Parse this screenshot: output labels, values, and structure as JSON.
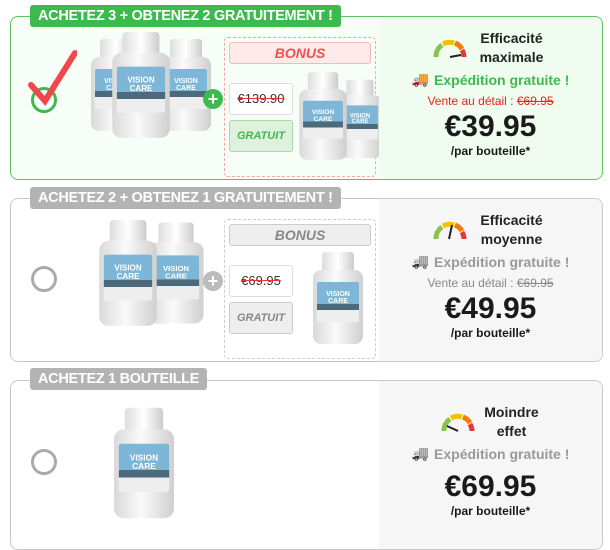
{
  "offers": [
    {
      "badge": "ACHETEZ 3 + OBTENEZ 2 GRATUITEMENT !",
      "selected": true,
      "bonus_label": "BONUS",
      "old_price": "€139.90",
      "free_label": "GRATUIT",
      "efficacy": "Efficacité maximale",
      "shipping": "Expédition gratuite !",
      "retail_label": "Vente au détail :",
      "retail_price": "€69.95",
      "price": "€39.95",
      "per": "/par bouteille*"
    },
    {
      "badge": "ACHETEZ 2 + OBTENEZ 1 GRATUITEMENT !",
      "selected": false,
      "bonus_label": "BONUS",
      "old_price": "€69.95",
      "free_label": "GRATUIT",
      "efficacy": "Efficacité moyenne",
      "shipping": "Expédition gratuite !",
      "retail_label": "Vente au détail :",
      "retail_price": "€69.95",
      "price": "€49.95",
      "per": "/par bouteille*"
    },
    {
      "badge": "ACHETEZ 1 BOUTEILLE",
      "selected": false,
      "efficacy": "Moindre effet",
      "shipping": "Expédition gratuite !",
      "price": "€69.95",
      "per": "/par bouteille*"
    }
  ],
  "product_label": "VISION CARE",
  "colors": {
    "accent": "#3dba4e",
    "inactive": "#b3b3b3",
    "bonus_red": "#f05050"
  }
}
